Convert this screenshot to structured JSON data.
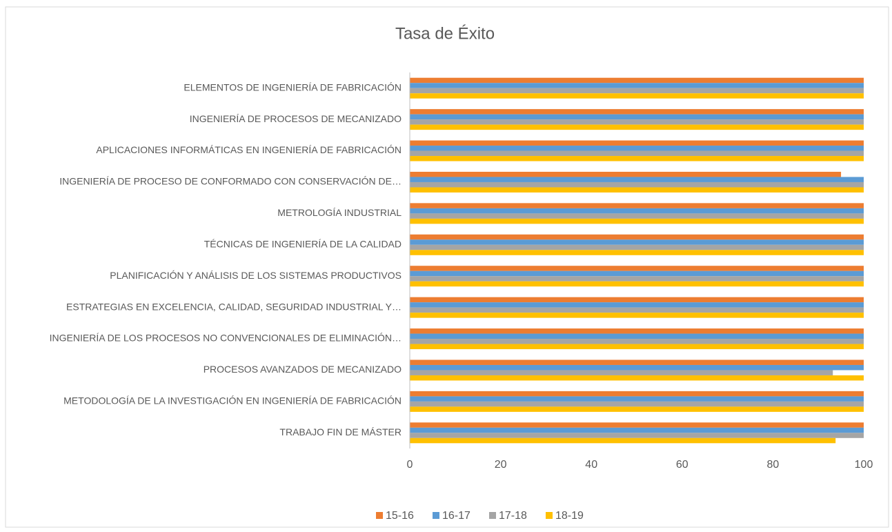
{
  "chart_data": {
    "type": "bar",
    "orientation": "horizontal",
    "title": "Tasa de Éxito",
    "categories": [
      "ELEMENTOS DE INGENIERÍA DE FABRICACIÓN",
      "INGENIERÍA DE PROCESOS DE MECANIZADO",
      "APLICACIONES INFORMÁTICAS EN INGENIERÍA DE FABRICACIÓN",
      "INGENIERÍA DE PROCESO DE CONFORMADO CON CONSERVACIÓN DE…",
      "METROLOGÍA INDUSTRIAL",
      "TÉCNICAS DE INGENIERÍA DE LA CALIDAD",
      "PLANIFICACIÓN Y ANÁLISIS DE LOS SISTEMAS PRODUCTIVOS",
      "ESTRATEGIAS EN EXCELENCIA, CALIDAD, SEGURIDAD INDUSTRIAL Y…",
      "INGENIERÍA DE LOS PROCESOS NO CONVENCIONALES DE ELIMINACIÓN…",
      "PROCESOS AVANZADOS DE MECANIZADO",
      "METODOLOGÍA DE LA INVESTIGACIÓN EN INGENIERÍA DE FABRICACIÓN",
      "TRABAJO FIN DE MÁSTER"
    ],
    "series": [
      {
        "name": "15-16",
        "color": "#ED7D31",
        "values": [
          100,
          100,
          100,
          95,
          100,
          100,
          100,
          100,
          100,
          100,
          100,
          100
        ]
      },
      {
        "name": "16-17",
        "color": "#5B9BD5",
        "values": [
          100,
          100,
          100,
          100,
          100,
          100,
          100,
          100,
          100,
          100,
          100,
          100
        ]
      },
      {
        "name": "17-18",
        "color": "#A5A5A5",
        "values": [
          100,
          100,
          100,
          100,
          100,
          100,
          100,
          100,
          100,
          93.2,
          100,
          100
        ]
      },
      {
        "name": "18-19",
        "color": "#FFC000",
        "values": [
          100,
          100,
          100,
          100,
          100,
          100,
          100,
          100,
          100,
          100,
          100,
          93.8
        ]
      }
    ],
    "xlim": [
      0,
      100
    ],
    "xticks": [
      0,
      20,
      40,
      60,
      80,
      100
    ],
    "grid": false,
    "legend": "bottom"
  }
}
